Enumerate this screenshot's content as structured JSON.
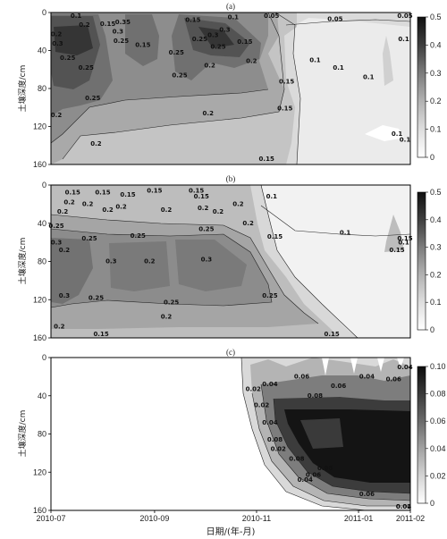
{
  "chart_data": [
    {
      "type": "heatmap",
      "panel_label": "(a)",
      "ylabel": "土壤深度/cm",
      "y_ticks": [
        "0",
        "40",
        "80",
        "120",
        "160"
      ],
      "x_ticks": [],
      "colorbar_ticks": [
        "0",
        "0.1",
        "0.2",
        "0.3",
        "0.4",
        "0.5"
      ],
      "colorbar_range": [
        0,
        0.5
      ],
      "ylim": [
        0,
        160
      ],
      "contour_levels": [
        0.05,
        0.1,
        0.15,
        0.2,
        0.25,
        0.3,
        0.35
      ],
      "contour_labels": [
        {
          "text": "0.1",
          "date": "2010-07-16",
          "depth": 4
        },
        {
          "text": "0.2",
          "date": "2010-07-02",
          "depth": 25
        },
        {
          "text": "0.3",
          "date": "2010-07-05",
          "depth": 35
        },
        {
          "text": "0.2",
          "date": "2010-07-21",
          "depth": 15
        },
        {
          "text": "0.25",
          "date": "2010-07-11",
          "depth": 50
        },
        {
          "text": "0.25",
          "date": "2010-07-22",
          "depth": 60
        },
        {
          "text": "0.15",
          "date": "2010-08-04",
          "depth": 14
        },
        {
          "text": "0.3",
          "date": "2010-08-10",
          "depth": 22
        },
        {
          "text": "0.25",
          "date": "2010-08-12",
          "depth": 32
        },
        {
          "text": "0.35",
          "date": "2010-08-13",
          "depth": 12
        },
        {
          "text": "0.15",
          "date": "2010-08-25",
          "depth": 36
        },
        {
          "text": "0.25",
          "date": "2010-09-14",
          "depth": 44
        },
        {
          "text": "0.15",
          "date": "2010-09-24",
          "depth": 10
        },
        {
          "text": "0.25",
          "date": "2010-09-28",
          "depth": 30
        },
        {
          "text": "0.3",
          "date": "2010-10-06",
          "depth": 26
        },
        {
          "text": "0.25",
          "date": "2010-10-09",
          "depth": 38
        },
        {
          "text": "0.3",
          "date": "2010-10-13",
          "depth": 20
        },
        {
          "text": "0.15",
          "date": "2010-10-25",
          "depth": 33
        },
        {
          "text": "0.2",
          "date": "2010-10-04",
          "depth": 58
        },
        {
          "text": "0.2",
          "date": "2010-10-29",
          "depth": 53
        },
        {
          "text": "0.25",
          "date": "2010-07-26",
          "depth": 92
        },
        {
          "text": "0.25",
          "date": "2010-09-16",
          "depth": 68
        },
        {
          "text": "0.15",
          "date": "2010-11-19",
          "depth": 75
        },
        {
          "text": "0.2",
          "date": "2010-10-03",
          "depth": 108
        },
        {
          "text": "0.2",
          "date": "2010-07-02",
          "depth": 110
        },
        {
          "text": "0.2",
          "date": "2010-07-28",
          "depth": 140
        },
        {
          "text": "0.15",
          "date": "2010-11-18",
          "depth": 103
        },
        {
          "text": "0.15",
          "date": "2010-11-07",
          "depth": 156
        },
        {
          "text": "0.1",
          "date": "2010-10-18",
          "depth": 7
        },
        {
          "text": "0.05",
          "date": "2010-11-10",
          "depth": 4
        },
        {
          "text": "0.05",
          "date": "2010-12-18",
          "depth": 9
        },
        {
          "text": "0.05",
          "date": "2011-01-30",
          "depth": 3
        },
        {
          "text": "0.1",
          "date": "2011-01-28",
          "depth": 30
        },
        {
          "text": "0.1",
          "date": "2010-12-06",
          "depth": 52
        },
        {
          "text": "0.1",
          "date": "2010-12-20",
          "depth": 60
        },
        {
          "text": "0.1",
          "date": "2011-01-07",
          "depth": 70
        },
        {
          "text": "0.1",
          "date": "2011-01-24",
          "depth": 130
        },
        {
          "text": "0.1",
          "date": "2011-01-29",
          "depth": 136
        }
      ]
    },
    {
      "type": "heatmap",
      "panel_label": "(b)",
      "ylabel": "土壤深度/cm",
      "y_ticks": [
        "0",
        "40",
        "80",
        "120",
        "160"
      ],
      "x_ticks": [],
      "colorbar_ticks": [
        "0",
        "0.1",
        "0.2",
        "0.3",
        "0.4",
        "0.5"
      ],
      "colorbar_range": [
        0,
        0.5
      ],
      "ylim": [
        0,
        160
      ],
      "contour_levels": [
        0.1,
        0.15,
        0.2,
        0.25,
        0.3
      ],
      "contour_labels": [
        {
          "text": "0.2",
          "date": "2010-07-12",
          "depth": 20
        },
        {
          "text": "0.15",
          "date": "2010-07-14",
          "depth": 10
        },
        {
          "text": "0.25",
          "date": "2010-07-02",
          "depth": 45
        },
        {
          "text": "0.2",
          "date": "2010-07-08",
          "depth": 30
        },
        {
          "text": "0.2",
          "date": "2010-07-23",
          "depth": 22
        },
        {
          "text": "0.15",
          "date": "2010-08-01",
          "depth": 10
        },
        {
          "text": "0.15",
          "date": "2010-08-16",
          "depth": 12
        },
        {
          "text": "0.2",
          "date": "2010-08-04",
          "depth": 28
        },
        {
          "text": "0.2",
          "date": "2010-08-12",
          "depth": 25
        },
        {
          "text": "0.15",
          "date": "2010-09-01",
          "depth": 8
        },
        {
          "text": "0.2",
          "date": "2010-09-08",
          "depth": 28
        },
        {
          "text": "0.15",
          "date": "2010-09-26",
          "depth": 8
        },
        {
          "text": "0.15",
          "date": "2010-09-29",
          "depth": 14
        },
        {
          "text": "0.2",
          "date": "2010-09-30",
          "depth": 26
        },
        {
          "text": "0.25",
          "date": "2010-10-02",
          "depth": 48
        },
        {
          "text": "0.2",
          "date": "2010-10-09",
          "depth": 30
        },
        {
          "text": "0.2",
          "date": "2010-10-21",
          "depth": 22
        },
        {
          "text": "0.2",
          "date": "2010-10-27",
          "depth": 42
        },
        {
          "text": "0.1",
          "date": "2010-11-10",
          "depth": 14
        },
        {
          "text": "0.15",
          "date": "2010-11-12",
          "depth": 56
        },
        {
          "text": "0.3",
          "date": "2010-07-03",
          "depth": 62
        },
        {
          "text": "0.2",
          "date": "2010-07-09",
          "depth": 70
        },
        {
          "text": "0.25",
          "date": "2010-07-24",
          "depth": 58
        },
        {
          "text": "0.25",
          "date": "2010-08-22",
          "depth": 55
        },
        {
          "text": "0.3",
          "date": "2010-08-06",
          "depth": 82
        },
        {
          "text": "0.2",
          "date": "2010-08-29",
          "depth": 82
        },
        {
          "text": "0.3",
          "date": "2010-10-02",
          "depth": 80
        },
        {
          "text": "0.25",
          "date": "2010-11-09",
          "depth": 118
        },
        {
          "text": "0.25",
          "date": "2010-07-28",
          "depth": 120
        },
        {
          "text": "0.25",
          "date": "2010-09-11",
          "depth": 125
        },
        {
          "text": "0.3",
          "date": "2010-07-09",
          "depth": 118
        },
        {
          "text": "0.2",
          "date": "2010-07-06",
          "depth": 150
        },
        {
          "text": "0.2",
          "date": "2010-09-08",
          "depth": 140
        },
        {
          "text": "0.15",
          "date": "2010-07-31",
          "depth": 163
        },
        {
          "text": "0.15",
          "date": "2010-12-16",
          "depth": 160
        },
        {
          "text": "0.1",
          "date": "2010-12-24",
          "depth": 52
        },
        {
          "text": "0.15",
          "date": "2011-01-29",
          "depth": 58
        },
        {
          "text": "0.15",
          "date": "2011-01-24",
          "depth": 70
        },
        {
          "text": "0.1",
          "date": "2011-01-28",
          "depth": 62
        }
      ]
    },
    {
      "type": "heatmap",
      "panel_label": "(c)",
      "ylabel": "土壤深度/cm",
      "xlabel": "日期/(年-月)",
      "y_ticks": [
        "0",
        "40",
        "80",
        "120",
        "160"
      ],
      "x_ticks": [
        "2010-07",
        "2010-09",
        "2010-11",
        "2011-01",
        "2011-02"
      ],
      "colorbar_ticks": [
        "0",
        "0.02",
        "0.04",
        "0.06",
        "0.08",
        "0.10"
      ],
      "colorbar_range": [
        0,
        0.1
      ],
      "ylim": [
        0,
        160
      ],
      "contour_levels": [
        0.02,
        0.04,
        0.06,
        0.08
      ],
      "contour_labels": [
        {
          "text": "0.02",
          "date": "2010-10-30",
          "depth": 35
        },
        {
          "text": "0.04",
          "date": "2010-11-09",
          "depth": 30
        },
        {
          "text": "0.06",
          "date": "2010-11-28",
          "depth": 22
        },
        {
          "text": "0.06",
          "date": "2010-12-20",
          "depth": 32
        },
        {
          "text": "0.08",
          "date": "2010-12-06",
          "depth": 42
        },
        {
          "text": "0.04",
          "date": "2011-01-06",
          "depth": 22
        },
        {
          "text": "0.06",
          "date": "2011-01-22",
          "depth": 25
        },
        {
          "text": "0.04",
          "date": "2011-01-31",
          "depth": 12
        },
        {
          "text": "0.02",
          "date": "2010-11-04",
          "depth": 52
        },
        {
          "text": "0.04",
          "date": "2010-11-09",
          "depth": 70
        },
        {
          "text": "0.08",
          "date": "2010-11-12",
          "depth": 88
        },
        {
          "text": "0.02",
          "date": "2010-11-14",
          "depth": 98
        },
        {
          "text": "0.08",
          "date": "2010-11-25",
          "depth": 108
        },
        {
          "text": "0.04",
          "date": "2010-11-30",
          "depth": 130
        },
        {
          "text": "0.06",
          "date": "2010-12-05",
          "depth": 125
        },
        {
          "text": "0.08",
          "date": "2010-12-12",
          "depth": 118
        },
        {
          "text": "0.06",
          "date": "2011-01-06",
          "depth": 145
        },
        {
          "text": "0.04",
          "date": "2011-01-28",
          "depth": 158
        },
        {
          "text": "0.02",
          "date": "2011-01-28",
          "depth": 163
        }
      ]
    }
  ]
}
